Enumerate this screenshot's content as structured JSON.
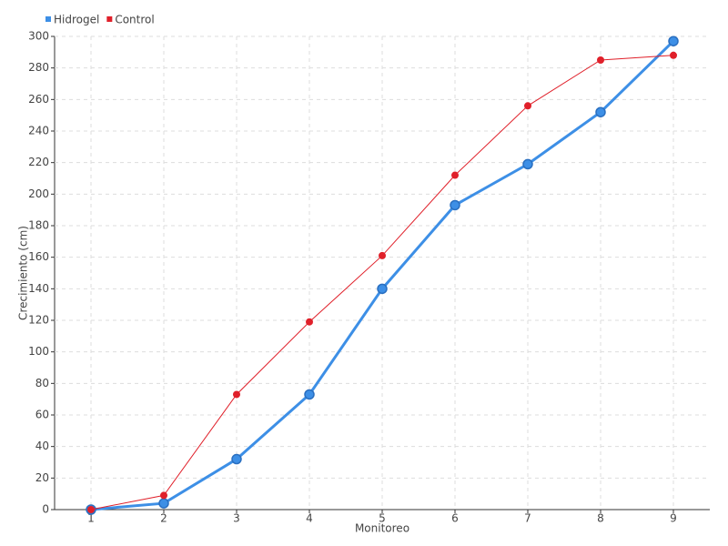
{
  "chart_data": {
    "type": "line",
    "x_label": "Monitoreo",
    "y_label": "Crecimiento (cm)",
    "x": [
      1,
      2,
      3,
      4,
      5,
      6,
      7,
      8,
      9
    ],
    "series": [
      {
        "name": "Hidrogel",
        "color": "#3d8fe6",
        "values": [
          0,
          4,
          32,
          73,
          140,
          193,
          219,
          252,
          297
        ]
      },
      {
        "name": "Control",
        "color": "#e0202a",
        "values": [
          0,
          9,
          73,
          119,
          161,
          212,
          256,
          285,
          288
        ]
      }
    ],
    "xlim": [
      0.5,
      9.5
    ],
    "xticks": [
      1,
      2,
      3,
      4,
      5,
      6,
      7,
      8,
      9
    ],
    "ylim": [
      0,
      300
    ],
    "yticks": [
      0,
      20,
      40,
      60,
      80,
      100,
      120,
      140,
      160,
      180,
      200,
      220,
      240,
      260,
      280,
      300
    ],
    "grid": true,
    "legend": "top-left"
  }
}
